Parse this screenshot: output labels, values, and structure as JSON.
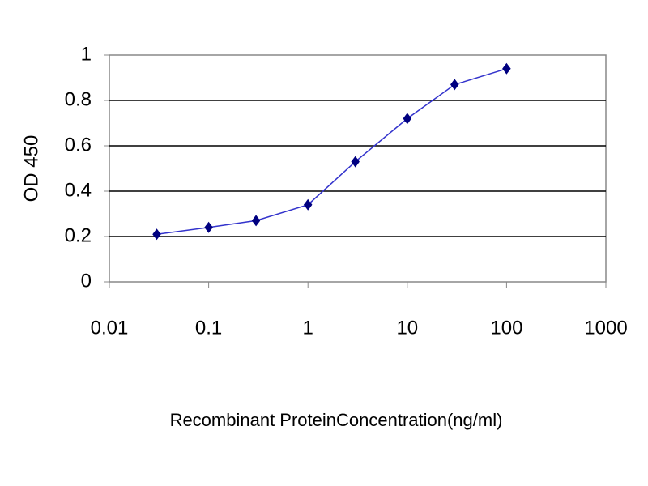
{
  "chart_data": {
    "type": "line",
    "xlabel": "Recombinant ProteinConcentration(ng/ml)",
    "ylabel": "OD 450",
    "x": [
      0.03,
      0.1,
      0.3,
      1,
      3,
      10,
      30,
      100
    ],
    "series": [
      {
        "color": "#000080",
        "line_color": "#3333cc",
        "values": [
          0.21,
          0.24,
          0.27,
          0.34,
          0.53,
          0.72,
          0.87,
          0.94
        ]
      }
    ],
    "xlim": [
      0.01,
      1000
    ],
    "xticks": [
      0.01,
      0.1,
      1,
      10,
      100,
      1000
    ],
    "xscale": "log",
    "ylim": [
      0,
      1
    ],
    "yticks": [
      0,
      0.2,
      0.4,
      0.6,
      0.8,
      1
    ],
    "grid": true
  }
}
